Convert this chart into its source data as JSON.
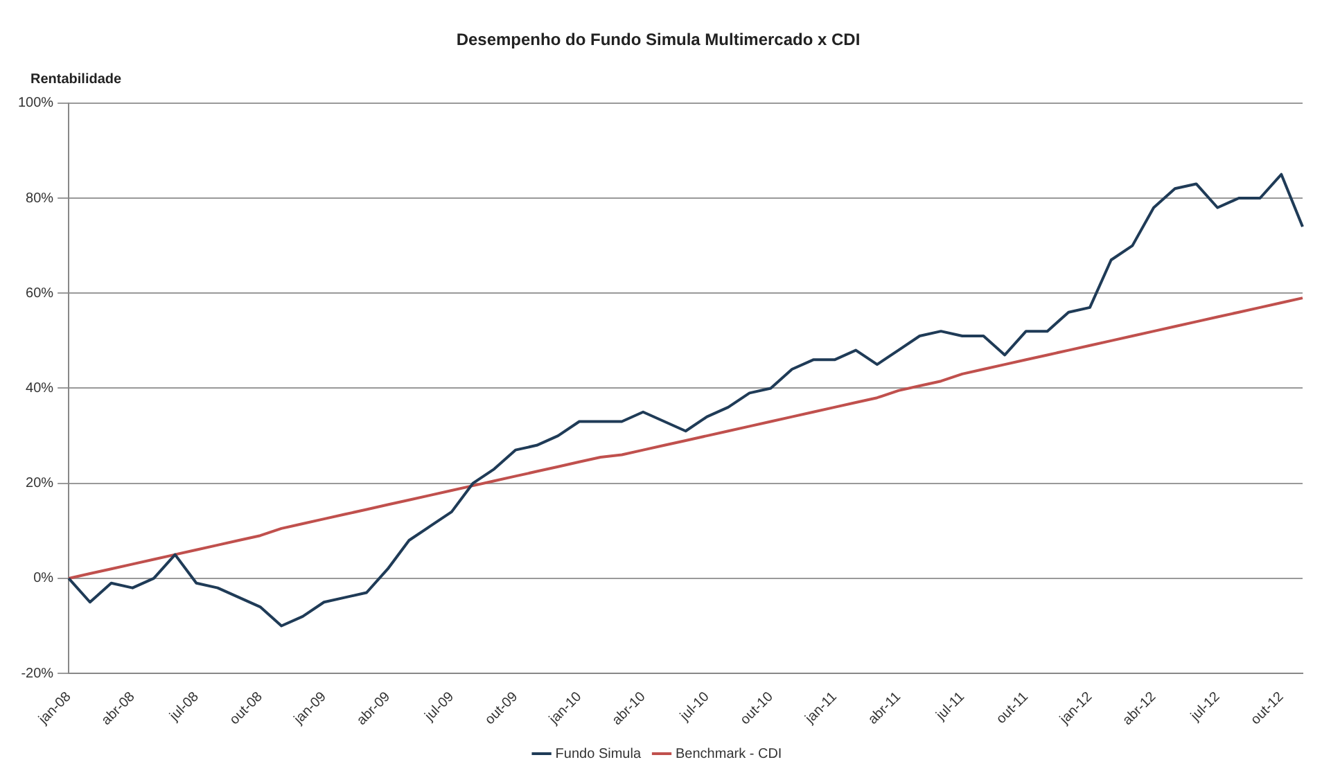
{
  "chart_data": {
    "type": "line",
    "title": "Desempenho do Fundo Simula Multimercado x CDI",
    "ylabel": "Rentabilidade",
    "categories": [
      "jan-08",
      null,
      null,
      "abr-08",
      null,
      null,
      "jul-08",
      null,
      null,
      "out-08",
      null,
      null,
      "jan-09",
      null,
      null,
      "abr-09",
      null,
      null,
      "jul-09",
      null,
      null,
      "out-09",
      null,
      null,
      "jan-10",
      null,
      null,
      "abr-10",
      null,
      null,
      "jul-10",
      null,
      null,
      "out-10",
      null,
      null,
      "jan-11",
      null,
      null,
      "abr-11",
      null,
      null,
      "jul-11",
      null,
      null,
      "out-11",
      null,
      null,
      "jan-12",
      null,
      null,
      "abr-12",
      null,
      null,
      "jul-12",
      null,
      null,
      "out-12",
      null
    ],
    "series": [
      {
        "name": "Fundo Simula",
        "color": "#1f3b57",
        "values": [
          0,
          -5,
          -1,
          -2,
          0,
          5,
          -1,
          -2,
          -4,
          -6,
          -10,
          -8,
          -5,
          -4,
          -3,
          2,
          8,
          11,
          14,
          20,
          23,
          27,
          28,
          30,
          33,
          33,
          33,
          35,
          33,
          31,
          34,
          36,
          39,
          40,
          44,
          46,
          46,
          48,
          45,
          48,
          51,
          52,
          51,
          51,
          47,
          52,
          52,
          56,
          57,
          67,
          70,
          78,
          82,
          83,
          78,
          80,
          80,
          85,
          74
        ]
      },
      {
        "name": "Benchmark - CDI",
        "color": "#c0504d",
        "values": [
          0,
          1,
          2,
          3,
          4,
          5,
          6,
          7,
          8,
          9,
          10.5,
          11.5,
          12.5,
          13.5,
          14.5,
          15.5,
          16.5,
          17.5,
          18.5,
          19.5,
          20.5,
          21.5,
          22.5,
          23.5,
          24.5,
          25.5,
          26,
          27,
          28,
          29,
          30,
          31,
          32,
          33,
          34,
          35,
          36,
          37,
          38,
          39.5,
          40.5,
          41.5,
          43,
          44,
          45,
          46,
          47,
          48,
          49,
          50,
          51,
          52,
          53,
          54,
          55,
          56,
          57,
          58,
          59
        ]
      }
    ],
    "ylim": [
      -20,
      100
    ],
    "yticks": [
      {
        "value": -20,
        "label": "-20%"
      },
      {
        "value": 0,
        "label": "0%"
      },
      {
        "value": 20,
        "label": "20%"
      },
      {
        "value": 40,
        "label": "40%"
      },
      {
        "value": 60,
        "label": "60%"
      },
      {
        "value": 80,
        "label": "80%"
      },
      {
        "value": 100,
        "label": "100%"
      }
    ],
    "grid": "y",
    "legend": "bottom",
    "marker": "none",
    "line_style": "solid"
  }
}
